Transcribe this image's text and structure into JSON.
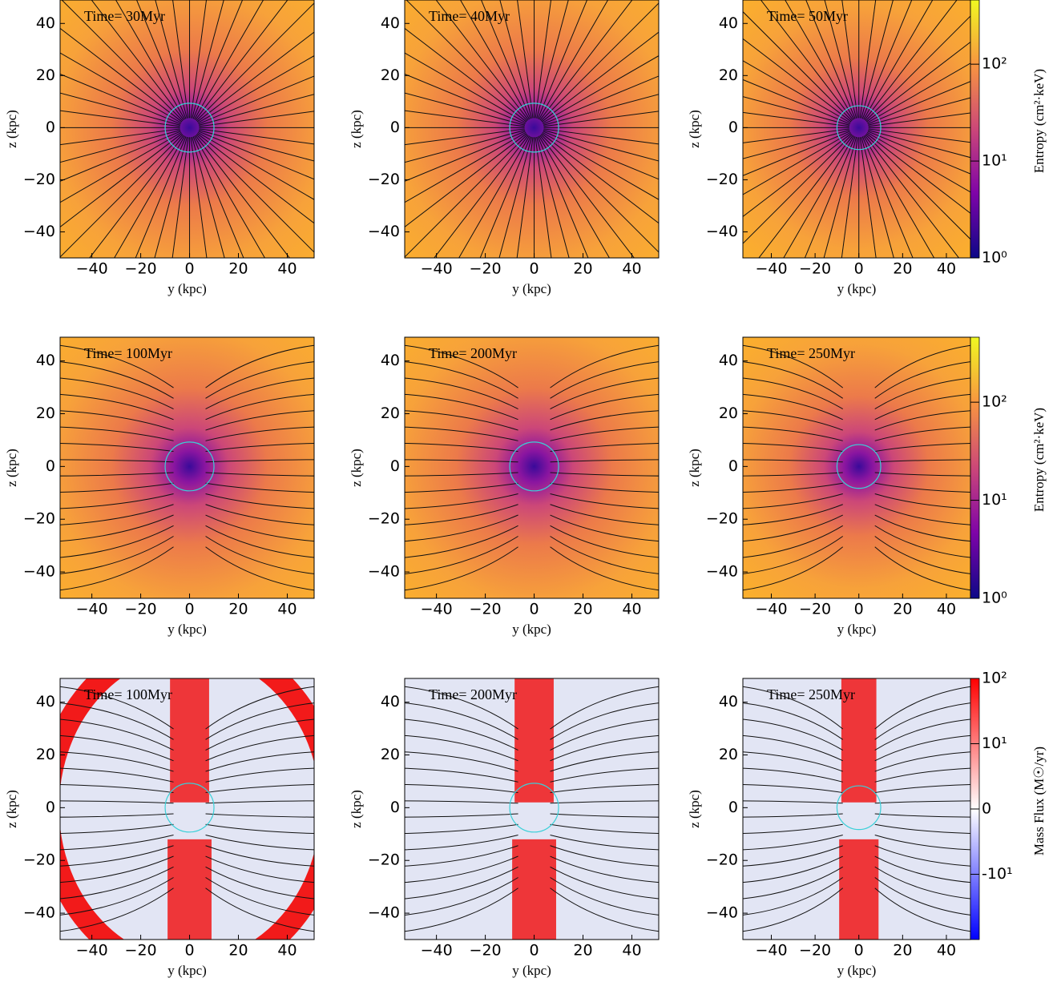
{
  "chart_data": [
    {
      "type": "image",
      "colormap": "plasma",
      "annotation": "Time= 30Myr",
      "xlabel": "y  (kpc)",
      "ylabel": "z  (kpc)",
      "xlim": [
        -53,
        51
      ],
      "ylim": [
        -50,
        49
      ],
      "xticks": [
        {
          "value": -40,
          "label": "−40"
        },
        {
          "value": -20,
          "label": "−20"
        },
        0,
        20,
        40
      ],
      "yticks": [
        {
          "value": -40,
          "label": "−40"
        },
        {
          "value": -20,
          "label": "−20"
        },
        0,
        20,
        40
      ]
    },
    {
      "type": "image",
      "colormap": "plasma",
      "annotation": "Time= 40Myr",
      "xlabel": "y  (kpc)",
      "ylabel": "z  (kpc)",
      "xlim": [
        -53,
        51
      ],
      "ylim": [
        -50,
        49
      ],
      "xticks": [
        {
          "value": -40,
          "label": "−40"
        },
        {
          "value": -20,
          "label": "−20"
        },
        0,
        20,
        40
      ],
      "yticks": [
        {
          "value": -40,
          "label": "−40"
        },
        {
          "value": -20,
          "label": "−20"
        },
        0,
        20,
        40
      ]
    },
    {
      "type": "image",
      "colormap": "plasma",
      "annotation": "Time= 50Myr",
      "xlabel": "y  (kpc)",
      "ylabel": "z  (kpc)",
      "xlim": [
        -53,
        51
      ],
      "ylim": [
        -50,
        49
      ],
      "xticks": [
        {
          "value": -40,
          "label": "−40"
        },
        {
          "value": -20,
          "label": "−20"
        },
        0,
        20,
        40
      ],
      "yticks": [
        {
          "value": -40,
          "label": "−40"
        },
        {
          "value": -20,
          "label": "−20"
        },
        0,
        20,
        40
      ],
      "colorbar": {
        "label": "Entropy  (cm²·keV)",
        "scale": "log",
        "lim": [
          1,
          460
        ],
        "ticks": [
          {
            "value": 1,
            "label": "10⁰"
          },
          {
            "value": 10,
            "label": "10¹"
          },
          {
            "value": 100,
            "label": "10²"
          }
        ],
        "colors": [
          "#0d0887",
          "#7e03a8",
          "#cc4778",
          "#f89540",
          "#f0f921"
        ]
      }
    },
    {
      "type": "image",
      "colormap": "plasma",
      "annotation": "Time= 100Myr",
      "xlabel": "y  (kpc)",
      "ylabel": "z  (kpc)",
      "xlim": [
        -53,
        51
      ],
      "ylim": [
        -50,
        49
      ],
      "xticks": [
        {
          "value": -40,
          "label": "−40"
        },
        {
          "value": -20,
          "label": "−20"
        },
        0,
        20,
        40
      ],
      "yticks": [
        {
          "value": -40,
          "label": "−40"
        },
        {
          "value": -20,
          "label": "−20"
        },
        0,
        20,
        40
      ]
    },
    {
      "type": "image",
      "colormap": "plasma",
      "annotation": "Time= 200Myr",
      "xlabel": "y  (kpc)",
      "ylabel": "z  (kpc)",
      "xlim": [
        -53,
        51
      ],
      "ylim": [
        -50,
        49
      ],
      "xticks": [
        {
          "value": -40,
          "label": "−40"
        },
        {
          "value": -20,
          "label": "−20"
        },
        0,
        20,
        40
      ],
      "yticks": [
        {
          "value": -40,
          "label": "−40"
        },
        {
          "value": -20,
          "label": "−20"
        },
        0,
        20,
        40
      ]
    },
    {
      "type": "image",
      "colormap": "plasma",
      "annotation": "Time= 250Myr",
      "xlabel": "y  (kpc)",
      "ylabel": "z  (kpc)",
      "xlim": [
        -53,
        51
      ],
      "ylim": [
        -50,
        49
      ],
      "xticks": [
        {
          "value": -40,
          "label": "−40"
        },
        {
          "value": -20,
          "label": "−20"
        },
        0,
        20,
        40
      ],
      "yticks": [
        {
          "value": -40,
          "label": "−40"
        },
        {
          "value": -20,
          "label": "−20"
        },
        0,
        20,
        40
      ],
      "colorbar": {
        "label": "Entropy  (cm²·keV)",
        "scale": "log",
        "lim": [
          1,
          460
        ],
        "ticks": [
          {
            "value": 1,
            "label": "10⁰"
          },
          {
            "value": 10,
            "label": "10¹"
          },
          {
            "value": 100,
            "label": "10²"
          }
        ],
        "colors": [
          "#0d0887",
          "#7e03a8",
          "#cc4778",
          "#f89540",
          "#f0f921"
        ]
      }
    },
    {
      "type": "image",
      "colormap": "bwr",
      "annotation": "Time= 100Myr",
      "xlabel": "y  (kpc)",
      "ylabel": "z  (kpc)",
      "xlim": [
        -53,
        51
      ],
      "ylim": [
        -50,
        49
      ],
      "xticks": [
        {
          "value": -40,
          "label": "−40"
        },
        {
          "value": -20,
          "label": "−20"
        },
        0,
        20,
        40
      ],
      "yticks": [
        {
          "value": -40,
          "label": "−40"
        },
        {
          "value": -20,
          "label": "−20"
        },
        0,
        20,
        40
      ]
    },
    {
      "type": "image",
      "colormap": "bwr",
      "annotation": "Time= 200Myr",
      "xlabel": "y  (kpc)",
      "ylabel": "z  (kpc)",
      "xlim": [
        -53,
        51
      ],
      "ylim": [
        -50,
        49
      ],
      "xticks": [
        {
          "value": -40,
          "label": "−40"
        },
        {
          "value": -20,
          "label": "−20"
        },
        0,
        20,
        40
      ],
      "yticks": [
        {
          "value": -40,
          "label": "−40"
        },
        {
          "value": -20,
          "label": "−20"
        },
        0,
        20,
        40
      ]
    },
    {
      "type": "image",
      "colormap": "bwr",
      "annotation": "Time= 250Myr",
      "xlabel": "y  (kpc)",
      "ylabel": "z  (kpc)",
      "xlim": [
        -53,
        51
      ],
      "ylim": [
        -50,
        49
      ],
      "xticks": [
        {
          "value": -40,
          "label": "−40"
        },
        {
          "value": -20,
          "label": "−20"
        },
        0,
        20,
        40
      ],
      "yticks": [
        {
          "value": -40,
          "label": "−40"
        },
        {
          "value": -20,
          "label": "−20"
        },
        0,
        20,
        40
      ],
      "colorbar": {
        "label": "Mass Flux  (M☉/yr)",
        "scale": "symlog",
        "lim": [
          -100,
          100
        ],
        "ticks": [
          {
            "value": 100,
            "label": "10²"
          },
          {
            "value": 10,
            "label": "10¹"
          },
          0,
          {
            "value": -10,
            "label": "-10¹"
          }
        ],
        "colors": [
          "#0000ff",
          "#ffffff",
          "#ff0000"
        ]
      }
    }
  ]
}
